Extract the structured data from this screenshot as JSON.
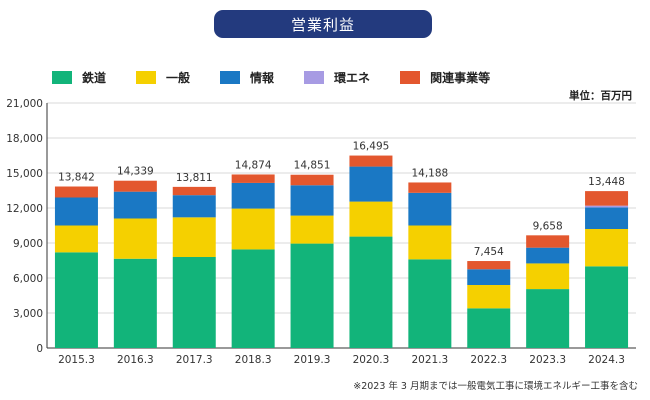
{
  "title": "営業利益",
  "unit": "単位：百万円",
  "footnote": "※2023 年 3 月期までは一般電気工事に環境エネルギー工事を含む",
  "legend": [
    {
      "name": "鉄道",
      "color": "#12b47a"
    },
    {
      "name": "一般",
      "color": "#f5d000"
    },
    {
      "name": "情報",
      "color": "#1a78c4"
    },
    {
      "name": "環エネ",
      "color": "#a79be3"
    },
    {
      "name": "関連事業等",
      "color": "#e3572e"
    }
  ],
  "chart_data": {
    "type": "bar",
    "stacked": true,
    "title": "営業利益",
    "ylabel": "単位：百万円",
    "xlabel": "",
    "ylim": [
      0,
      21000
    ],
    "yticks": [
      "0",
      "3,000",
      "6,000",
      "9,000",
      "12,000",
      "15,000",
      "18,000",
      "21,000"
    ],
    "ytick_values": [
      0,
      3000,
      6000,
      9000,
      12000,
      15000,
      18000,
      21000
    ],
    "categories": [
      "2015.3",
      "2016.3",
      "2017.3",
      "2018.3",
      "2019.3",
      "2020.3",
      "2021.3",
      "2022.3",
      "2023.3",
      "2024.3"
    ],
    "series": [
      {
        "name": "鉄道",
        "color": "#12b47a",
        "values": [
          8200,
          7650,
          7800,
          8450,
          8950,
          9550,
          7600,
          3400,
          5050,
          7000
        ]
      },
      {
        "name": "一般",
        "color": "#f5d000",
        "values": [
          2300,
          3450,
          3400,
          3500,
          2400,
          3000,
          2900,
          2000,
          2200,
          3200
        ]
      },
      {
        "name": "情報",
        "color": "#1a78c4",
        "values": [
          2400,
          2300,
          1900,
          2200,
          2600,
          3000,
          2800,
          1350,
          1350,
          1850
        ]
      },
      {
        "name": "環エネ",
        "color": "#a79be3",
        "values": [
          0,
          0,
          0,
          0,
          0,
          0,
          0,
          0,
          0,
          150
        ]
      },
      {
        "name": "関連事業等",
        "color": "#e3572e",
        "values": [
          942,
          939,
          711,
          724,
          901,
          945,
          888,
          704,
          1058,
          1248
        ]
      }
    ],
    "totals": [
      13842,
      14339,
      13811,
      14874,
      14851,
      16495,
      14188,
      7454,
      9658,
      13448
    ],
    "total_labels": [
      "13,842",
      "14,339",
      "13,811",
      "14,874",
      "14,851",
      "16,495",
      "14,188",
      "7,454",
      "9,658",
      "13,448"
    ]
  }
}
